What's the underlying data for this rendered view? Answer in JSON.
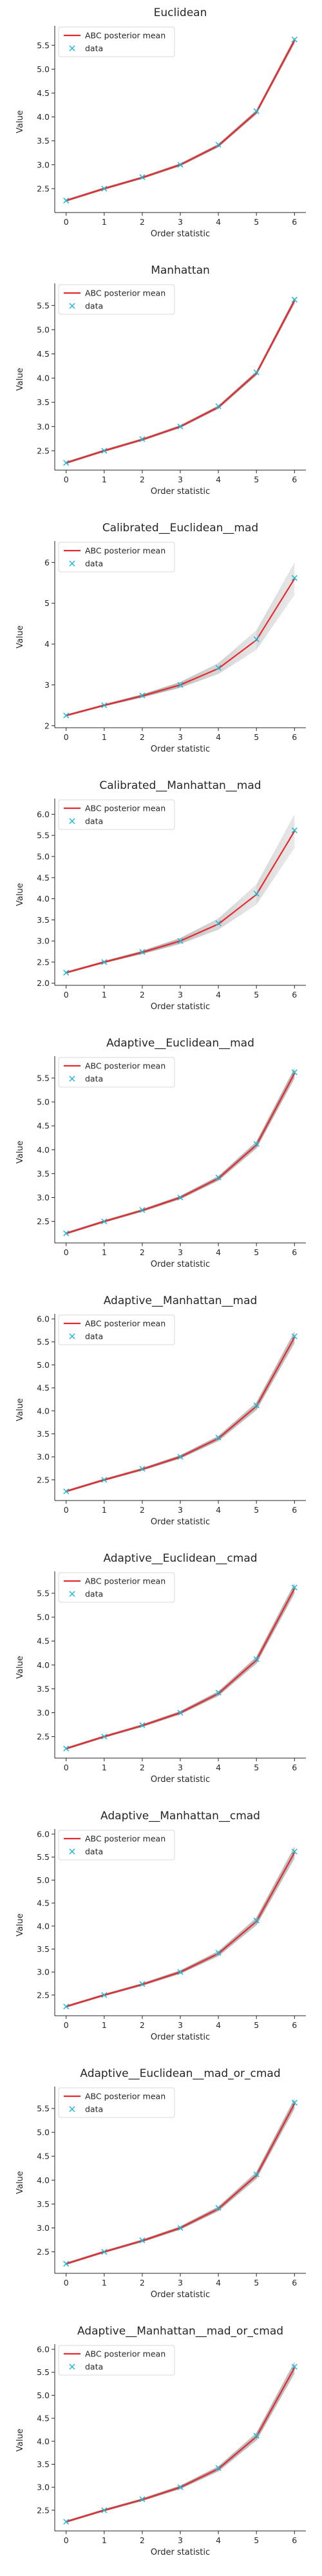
{
  "legend": {
    "line_label": "ABC posterior mean",
    "marker_label": "data",
    "placement": "upper-left"
  },
  "colors": {
    "line": "#e8282d",
    "band": "#7f7f7f",
    "marker": "#1fb7d2",
    "axis": "#262626"
  },
  "chart_data": [
    {
      "type": "line",
      "title": "Euclidean",
      "xlabel": "Order statistic",
      "ylabel": "Value",
      "x": [
        0,
        1,
        2,
        3,
        4,
        5,
        6
      ],
      "xlim": [
        -0.3,
        6.3
      ],
      "ylim": [
        2.0,
        5.8
      ],
      "yticks": [
        2.5,
        3.0,
        3.5,
        4.0,
        4.5,
        5.0,
        5.5
      ],
      "xticks": [
        0,
        1,
        2,
        3,
        4,
        5,
        6
      ],
      "series": [
        {
          "name": "ABC posterior mean",
          "kind": "line",
          "values": [
            2.25,
            2.5,
            2.73,
            3.0,
            3.4,
            4.1,
            5.6
          ]
        },
        {
          "name": "data",
          "kind": "scatter",
          "values": [
            2.25,
            2.5,
            2.74,
            3.0,
            3.42,
            4.12,
            5.62
          ]
        }
      ],
      "band_spread": 0.03,
      "grid": false
    },
    {
      "type": "line",
      "title": "Manhattan",
      "xlabel": "Order statistic",
      "ylabel": "Value",
      "x": [
        0,
        1,
        2,
        3,
        4,
        5,
        6
      ],
      "xlim": [
        -0.3,
        6.3
      ],
      "ylim": [
        2.1,
        5.85
      ],
      "yticks": [
        2.5,
        3.0,
        3.5,
        4.0,
        4.5,
        5.0,
        5.5
      ],
      "xticks": [
        0,
        1,
        2,
        3,
        4,
        5,
        6
      ],
      "series": [
        {
          "name": "ABC posterior mean",
          "kind": "line",
          "values": [
            2.25,
            2.5,
            2.73,
            3.0,
            3.4,
            4.1,
            5.6
          ]
        },
        {
          "name": "data",
          "kind": "scatter",
          "values": [
            2.25,
            2.5,
            2.74,
            3.0,
            3.42,
            4.12,
            5.62
          ]
        }
      ],
      "band_spread": 0.03,
      "grid": false
    },
    {
      "type": "line",
      "title": "Calibrated__Euclidean__mad",
      "xlabel": "Order statistic",
      "ylabel": "Value",
      "x": [
        0,
        1,
        2,
        3,
        4,
        5,
        6
      ],
      "xlim": [
        -0.3,
        6.3
      ],
      "ylim": [
        1.95,
        6.4
      ],
      "yticks": [
        2,
        3,
        4,
        5,
        6
      ],
      "xticks": [
        0,
        1,
        2,
        3,
        4,
        5,
        6
      ],
      "series": [
        {
          "name": "ABC posterior mean",
          "kind": "line",
          "values": [
            2.25,
            2.5,
            2.73,
            3.0,
            3.4,
            4.1,
            5.6
          ]
        },
        {
          "name": "data",
          "kind": "scatter",
          "values": [
            2.25,
            2.5,
            2.74,
            3.0,
            3.42,
            4.12,
            5.62
          ]
        }
      ],
      "band_spread": 0.35,
      "grid": false
    },
    {
      "type": "line",
      "title": "Calibrated__Manhattan__mad",
      "xlabel": "Order statistic",
      "ylabel": "Value",
      "x": [
        0,
        1,
        2,
        3,
        4,
        5,
        6
      ],
      "xlim": [
        -0.3,
        6.3
      ],
      "ylim": [
        1.95,
        6.25
      ],
      "yticks": [
        2.0,
        2.5,
        3.0,
        3.5,
        4.0,
        4.5,
        5.0,
        5.5,
        6.0
      ],
      "xticks": [
        0,
        1,
        2,
        3,
        4,
        5,
        6
      ],
      "series": [
        {
          "name": "ABC posterior mean",
          "kind": "line",
          "values": [
            2.25,
            2.5,
            2.73,
            3.0,
            3.4,
            4.1,
            5.6
          ]
        },
        {
          "name": "data",
          "kind": "scatter",
          "values": [
            2.25,
            2.5,
            2.74,
            3.0,
            3.42,
            4.12,
            5.62
          ]
        }
      ],
      "band_spread": 0.35,
      "grid": false
    },
    {
      "type": "line",
      "title": "Adaptive__Euclidean__mad",
      "xlabel": "Order statistic",
      "ylabel": "Value",
      "x": [
        0,
        1,
        2,
        3,
        4,
        5,
        6
      ],
      "xlim": [
        -0.3,
        6.3
      ],
      "ylim": [
        2.05,
        5.85
      ],
      "yticks": [
        2.5,
        3.0,
        3.5,
        4.0,
        4.5,
        5.0,
        5.5
      ],
      "xticks": [
        0,
        1,
        2,
        3,
        4,
        5,
        6
      ],
      "series": [
        {
          "name": "ABC posterior mean",
          "kind": "line",
          "values": [
            2.25,
            2.5,
            2.73,
            3.0,
            3.4,
            4.1,
            5.6
          ]
        },
        {
          "name": "data",
          "kind": "scatter",
          "values": [
            2.25,
            2.5,
            2.74,
            3.0,
            3.42,
            4.12,
            5.62
          ]
        }
      ],
      "band_spread": 0.08,
      "grid": false
    },
    {
      "type": "line",
      "title": "Adaptive__Manhattan__mad",
      "xlabel": "Order statistic",
      "ylabel": "Value",
      "x": [
        0,
        1,
        2,
        3,
        4,
        5,
        6
      ],
      "xlim": [
        -0.3,
        6.3
      ],
      "ylim": [
        2.05,
        6.0
      ],
      "yticks": [
        2.5,
        3.0,
        3.5,
        4.0,
        4.5,
        5.0,
        5.5,
        6.0
      ],
      "xticks": [
        0,
        1,
        2,
        3,
        4,
        5,
        6
      ],
      "series": [
        {
          "name": "ABC posterior mean",
          "kind": "line",
          "values": [
            2.25,
            2.5,
            2.73,
            3.0,
            3.4,
            4.1,
            5.6
          ]
        },
        {
          "name": "data",
          "kind": "scatter",
          "values": [
            2.25,
            2.5,
            2.74,
            3.0,
            3.42,
            4.12,
            5.62
          ]
        }
      ],
      "band_spread": 0.1,
      "grid": false
    },
    {
      "type": "line",
      "title": "Adaptive__Euclidean__cmad",
      "xlabel": "Order statistic",
      "ylabel": "Value",
      "x": [
        0,
        1,
        2,
        3,
        4,
        5,
        6
      ],
      "xlim": [
        -0.3,
        6.3
      ],
      "ylim": [
        2.05,
        5.85
      ],
      "yticks": [
        2.5,
        3.0,
        3.5,
        4.0,
        4.5,
        5.0,
        5.5
      ],
      "xticks": [
        0,
        1,
        2,
        3,
        4,
        5,
        6
      ],
      "series": [
        {
          "name": "ABC posterior mean",
          "kind": "line",
          "values": [
            2.25,
            2.5,
            2.73,
            3.0,
            3.4,
            4.1,
            5.6
          ]
        },
        {
          "name": "data",
          "kind": "scatter",
          "values": [
            2.25,
            2.5,
            2.74,
            3.0,
            3.42,
            4.12,
            5.62
          ]
        }
      ],
      "band_spread": 0.08,
      "grid": false
    },
    {
      "type": "line",
      "title": "Adaptive__Manhattan__cmad",
      "xlabel": "Order statistic",
      "ylabel": "Value",
      "x": [
        0,
        1,
        2,
        3,
        4,
        5,
        6
      ],
      "xlim": [
        -0.3,
        6.3
      ],
      "ylim": [
        2.05,
        6.0
      ],
      "yticks": [
        2.5,
        3.0,
        3.5,
        4.0,
        4.5,
        5.0,
        5.5,
        6.0
      ],
      "xticks": [
        0,
        1,
        2,
        3,
        4,
        5,
        6
      ],
      "series": [
        {
          "name": "ABC posterior mean",
          "kind": "line",
          "values": [
            2.25,
            2.5,
            2.73,
            3.0,
            3.4,
            4.1,
            5.6
          ]
        },
        {
          "name": "data",
          "kind": "scatter",
          "values": [
            2.25,
            2.5,
            2.74,
            3.0,
            3.42,
            4.12,
            5.62
          ]
        }
      ],
      "band_spread": 0.1,
      "grid": false
    },
    {
      "type": "line",
      "title": "Adaptive__Euclidean__mad_or_cmad",
      "xlabel": "Order statistic",
      "ylabel": "Value",
      "x": [
        0,
        1,
        2,
        3,
        4,
        5,
        6
      ],
      "xlim": [
        -0.3,
        6.3
      ],
      "ylim": [
        2.05,
        5.85
      ],
      "yticks": [
        2.5,
        3.0,
        3.5,
        4.0,
        4.5,
        5.0,
        5.5
      ],
      "xticks": [
        0,
        1,
        2,
        3,
        4,
        5,
        6
      ],
      "series": [
        {
          "name": "ABC posterior mean",
          "kind": "line",
          "values": [
            2.25,
            2.5,
            2.73,
            3.0,
            3.4,
            4.1,
            5.6
          ]
        },
        {
          "name": "data",
          "kind": "scatter",
          "values": [
            2.25,
            2.5,
            2.74,
            3.0,
            3.42,
            4.12,
            5.62
          ]
        }
      ],
      "band_spread": 0.08,
      "grid": false
    },
    {
      "type": "line",
      "title": "Adaptive__Manhattan__mad_or_cmad",
      "xlabel": "Order statistic",
      "ylabel": "Value",
      "x": [
        0,
        1,
        2,
        3,
        4,
        5,
        6
      ],
      "xlim": [
        -0.3,
        6.3
      ],
      "ylim": [
        2.05,
        6.0
      ],
      "yticks": [
        2.5,
        3.0,
        3.5,
        4.0,
        4.5,
        5.0,
        5.5,
        6.0
      ],
      "xticks": [
        0,
        1,
        2,
        3,
        4,
        5,
        6
      ],
      "series": [
        {
          "name": "ABC posterior mean",
          "kind": "line",
          "values": [
            2.25,
            2.5,
            2.73,
            3.0,
            3.4,
            4.1,
            5.6
          ]
        },
        {
          "name": "data",
          "kind": "scatter",
          "values": [
            2.25,
            2.5,
            2.74,
            3.0,
            3.42,
            4.12,
            5.62
          ]
        }
      ],
      "band_spread": 0.1,
      "grid": false
    }
  ]
}
